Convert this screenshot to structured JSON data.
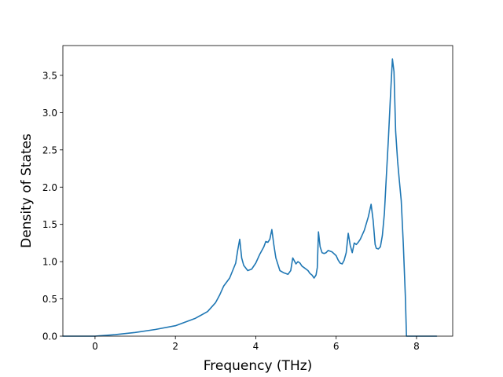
{
  "chart_data": {
    "type": "line",
    "title": "",
    "xlabel": "Frequency (THz)",
    "ylabel": "Density of States",
    "xlim": [
      -0.8,
      8.9
    ],
    "ylim": [
      0.0,
      3.9
    ],
    "xticks": [
      0,
      2,
      4,
      6,
      8
    ],
    "xtick_labels": [
      "0",
      "2",
      "4",
      "6",
      "8"
    ],
    "yticks": [
      0.0,
      0.5,
      1.0,
      1.5,
      2.0,
      2.5,
      3.0,
      3.5
    ],
    "ytick_labels": [
      "0.0",
      "0.5",
      "1.0",
      "1.5",
      "2.0",
      "2.5",
      "3.0",
      "3.5"
    ],
    "grid": false,
    "legend": false,
    "series": [
      {
        "color": "#1f77b4",
        "x": [
          -0.8,
          0.0,
          0.5,
          1.0,
          1.5,
          2.0,
          2.5,
          2.8,
          3.0,
          3.1,
          3.2,
          3.35,
          3.5,
          3.55,
          3.6,
          3.65,
          3.7,
          3.8,
          3.9,
          4.0,
          4.1,
          4.2,
          4.25,
          4.3,
          4.35,
          4.4,
          4.45,
          4.5,
          4.6,
          4.7,
          4.8,
          4.87,
          4.92,
          5.0,
          5.05,
          5.1,
          5.15,
          5.2,
          5.3,
          5.35,
          5.4,
          5.45,
          5.5,
          5.53,
          5.56,
          5.6,
          5.65,
          5.7,
          5.75,
          5.8,
          5.9,
          6.0,
          6.05,
          6.1,
          6.15,
          6.2,
          6.25,
          6.3,
          6.35,
          6.4,
          6.45,
          6.5,
          6.55,
          6.6,
          6.7,
          6.8,
          6.87,
          6.92,
          6.97,
          7.0,
          7.05,
          7.1,
          7.15,
          7.2,
          7.25,
          7.3,
          7.35,
          7.4,
          7.44,
          7.48,
          7.53,
          7.57,
          7.62,
          7.67,
          7.72,
          7.75,
          7.77,
          7.8,
          8.0,
          8.5
        ],
        "y": [
          0.0,
          0.0,
          0.02,
          0.05,
          0.09,
          0.14,
          0.24,
          0.33,
          0.45,
          0.55,
          0.67,
          0.78,
          0.98,
          1.15,
          1.3,
          1.05,
          0.95,
          0.88,
          0.9,
          0.98,
          1.1,
          1.2,
          1.27,
          1.26,
          1.3,
          1.43,
          1.22,
          1.05,
          0.88,
          0.85,
          0.83,
          0.88,
          1.05,
          0.97,
          1.0,
          0.98,
          0.94,
          0.92,
          0.88,
          0.84,
          0.82,
          0.78,
          0.82,
          0.92,
          1.4,
          1.2,
          1.12,
          1.11,
          1.12,
          1.15,
          1.13,
          1.08,
          1.02,
          0.98,
          0.97,
          1.02,
          1.12,
          1.38,
          1.22,
          1.12,
          1.25,
          1.23,
          1.26,
          1.3,
          1.42,
          1.6,
          1.77,
          1.55,
          1.23,
          1.18,
          1.17,
          1.2,
          1.35,
          1.65,
          2.15,
          2.65,
          3.2,
          3.72,
          3.55,
          2.75,
          2.35,
          2.1,
          1.82,
          1.25,
          0.55,
          0.0,
          0.0,
          0.0,
          0.0,
          0.0
        ]
      }
    ]
  }
}
